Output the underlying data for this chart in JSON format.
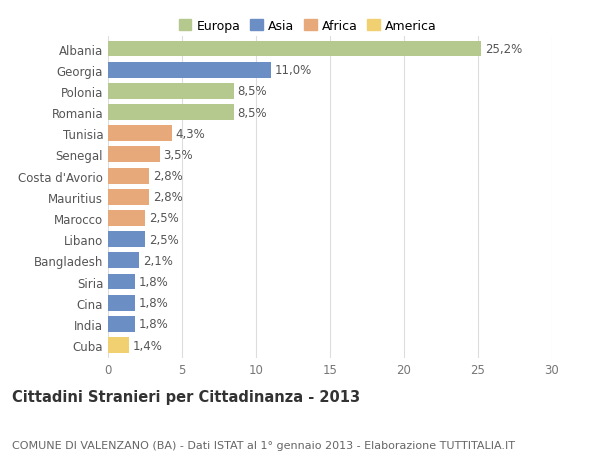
{
  "categories": [
    "Albania",
    "Georgia",
    "Polonia",
    "Romania",
    "Tunisia",
    "Senegal",
    "Costa d'Avorio",
    "Mauritius",
    "Marocco",
    "Libano",
    "Bangladesh",
    "Siria",
    "Cina",
    "India",
    "Cuba"
  ],
  "values": [
    25.2,
    11.0,
    8.5,
    8.5,
    4.3,
    3.5,
    2.8,
    2.8,
    2.5,
    2.5,
    2.1,
    1.8,
    1.8,
    1.8,
    1.4
  ],
  "labels": [
    "25,2%",
    "11,0%",
    "8,5%",
    "8,5%",
    "4,3%",
    "3,5%",
    "2,8%",
    "2,8%",
    "2,5%",
    "2,5%",
    "2,1%",
    "1,8%",
    "1,8%",
    "1,8%",
    "1,4%"
  ],
  "bar_colors": [
    "#b5c98e",
    "#6b8ec4",
    "#b5c98e",
    "#b5c98e",
    "#e8a97a",
    "#e8a97a",
    "#e8a97a",
    "#e8a97a",
    "#e8a97a",
    "#6b8ec4",
    "#6b8ec4",
    "#6b8ec4",
    "#6b8ec4",
    "#6b8ec4",
    "#f0d070"
  ],
  "legend_labels": [
    "Europa",
    "Asia",
    "Africa",
    "America"
  ],
  "legend_colors": [
    "#b5c98e",
    "#6b8ec4",
    "#e8a97a",
    "#f0d070"
  ],
  "title": "Cittadini Stranieri per Cittadinanza - 2013",
  "subtitle": "COMUNE DI VALENZANO (BA) - Dati ISTAT al 1° gennaio 2013 - Elaborazione TUTTITALIA.IT",
  "xlim": [
    0,
    30
  ],
  "xticks": [
    0,
    5,
    10,
    15,
    20,
    25,
    30
  ],
  "background_color": "#ffffff",
  "grid_color": "#dddddd",
  "tick_fontsize": 8.5,
  "title_fontsize": 10.5,
  "subtitle_fontsize": 8,
  "bar_label_fontsize": 8.5,
  "legend_fontsize": 9
}
